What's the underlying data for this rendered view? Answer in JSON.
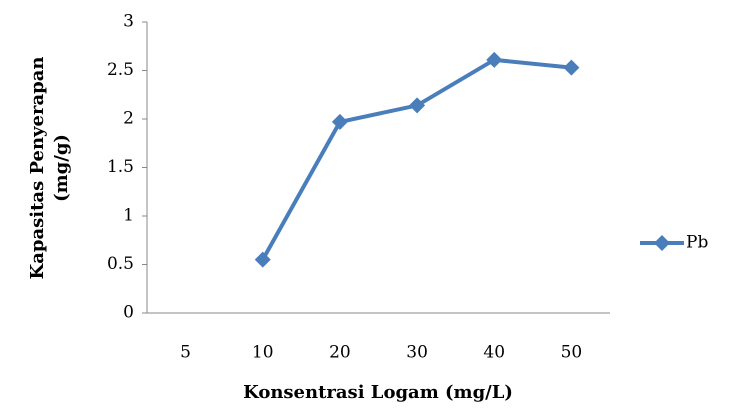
{
  "chart_data": {
    "type": "line",
    "xlabel": "Konsentrasi Logam (mg/L)",
    "ylabel": [
      "Kapasitas Penyerapan",
      "(mg/g)"
    ],
    "categories": [
      "5",
      "10",
      "20",
      "30",
      "40",
      "50"
    ],
    "series": [
      {
        "name": "Pb",
        "color": "#4a7ebb",
        "values": [
          null,
          0.55,
          1.97,
          2.14,
          2.61,
          2.53
        ]
      }
    ],
    "ylim": [
      0,
      3
    ],
    "yticks": [
      0,
      0.5,
      1,
      1.5,
      2,
      2.5,
      3
    ],
    "grid": false,
    "legend": "right"
  }
}
